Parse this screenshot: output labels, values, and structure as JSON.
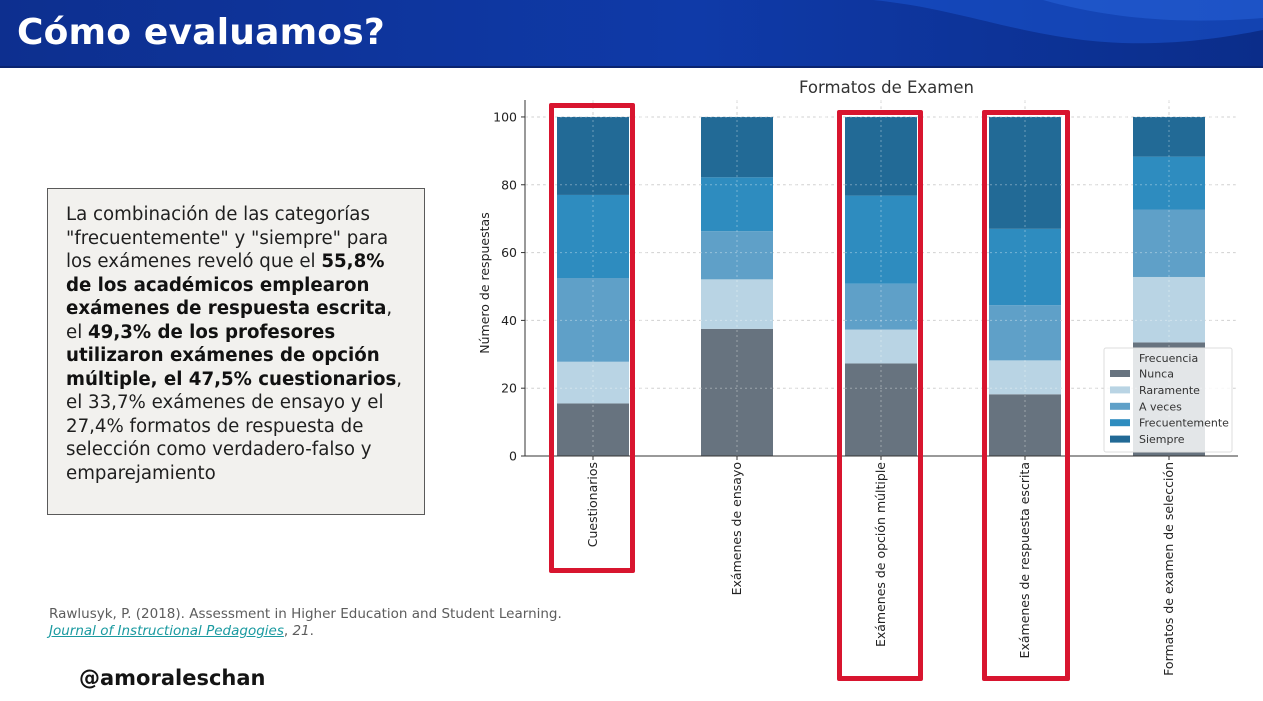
{
  "header": {
    "title": "Cómo evaluamos?"
  },
  "summary": {
    "p1": "La combinación de las categorías \"frecuentemente\" y \"siempre\" para los exámenes reveló que el ",
    "b1": "55,8% de los académicos emplearon exámenes de respuesta escrita",
    "p2": ", el ",
    "b2": "49,3% de los profesores utilizaron exámenes de opción múltiple, el 47,5% cuestionarios",
    "p3": ", el 33,7% exámenes de ensayo y el 27,4% formatos de respuesta de selección como verdadero-falso y emparejamiento"
  },
  "citation": {
    "line1": "Rawlusyk, P. (2018). Assessment in Higher Education and Student Learning.",
    "journal": "Journal of Instructional Pedagogies",
    "sep": ", ",
    "volume": "21",
    "end": "."
  },
  "handle": "@amoraleschan",
  "colors": {
    "nunca": "#67737f",
    "raramente": "#b9d4e4",
    "a_veces": "#5fa0c8",
    "frecuentemente": "#2e8cbf",
    "siempre": "#226a96",
    "highlight": "#d8152f",
    "header": "#0f3aa8"
  },
  "chart_data": {
    "type": "bar",
    "stacked": true,
    "title": "Formatos de Examen",
    "ylabel": "Número de respuestas",
    "xlabel": "",
    "ylim": [
      0,
      105
    ],
    "yticks": [
      0,
      20,
      40,
      60,
      80,
      100
    ],
    "grid": true,
    "legend_title": "Frecuencia",
    "legend_position": "lower right",
    "categories": [
      "Cuestionarios",
      "Exámenes de ensayo",
      "Exámenes de opción múltiple",
      "Exámenes de respuesta escrita",
      "Formatos de examen de selección"
    ],
    "series": [
      {
        "name": "Nunca",
        "color_key": "nunca",
        "values": [
          15.5,
          37.5,
          27.3,
          18.2,
          33.5
        ]
      },
      {
        "name": "Raramente",
        "color_key": "raramente",
        "values": [
          12.3,
          14.6,
          10.0,
          10.0,
          19.3
        ]
      },
      {
        "name": "A veces",
        "color_key": "a_veces",
        "values": [
          24.7,
          14.2,
          13.5,
          16.3,
          19.9
        ]
      },
      {
        "name": "Frecuentemente",
        "color_key": "frecuentemente",
        "values": [
          24.5,
          15.9,
          26.0,
          22.5,
          15.6
        ]
      },
      {
        "name": "Siempre",
        "color_key": "siempre",
        "values": [
          23.0,
          17.8,
          23.2,
          33.0,
          11.7
        ]
      }
    ],
    "highlighted_categories": [
      "Cuestionarios",
      "Exámenes de opción múltiple",
      "Exámenes de respuesta escrita"
    ]
  }
}
